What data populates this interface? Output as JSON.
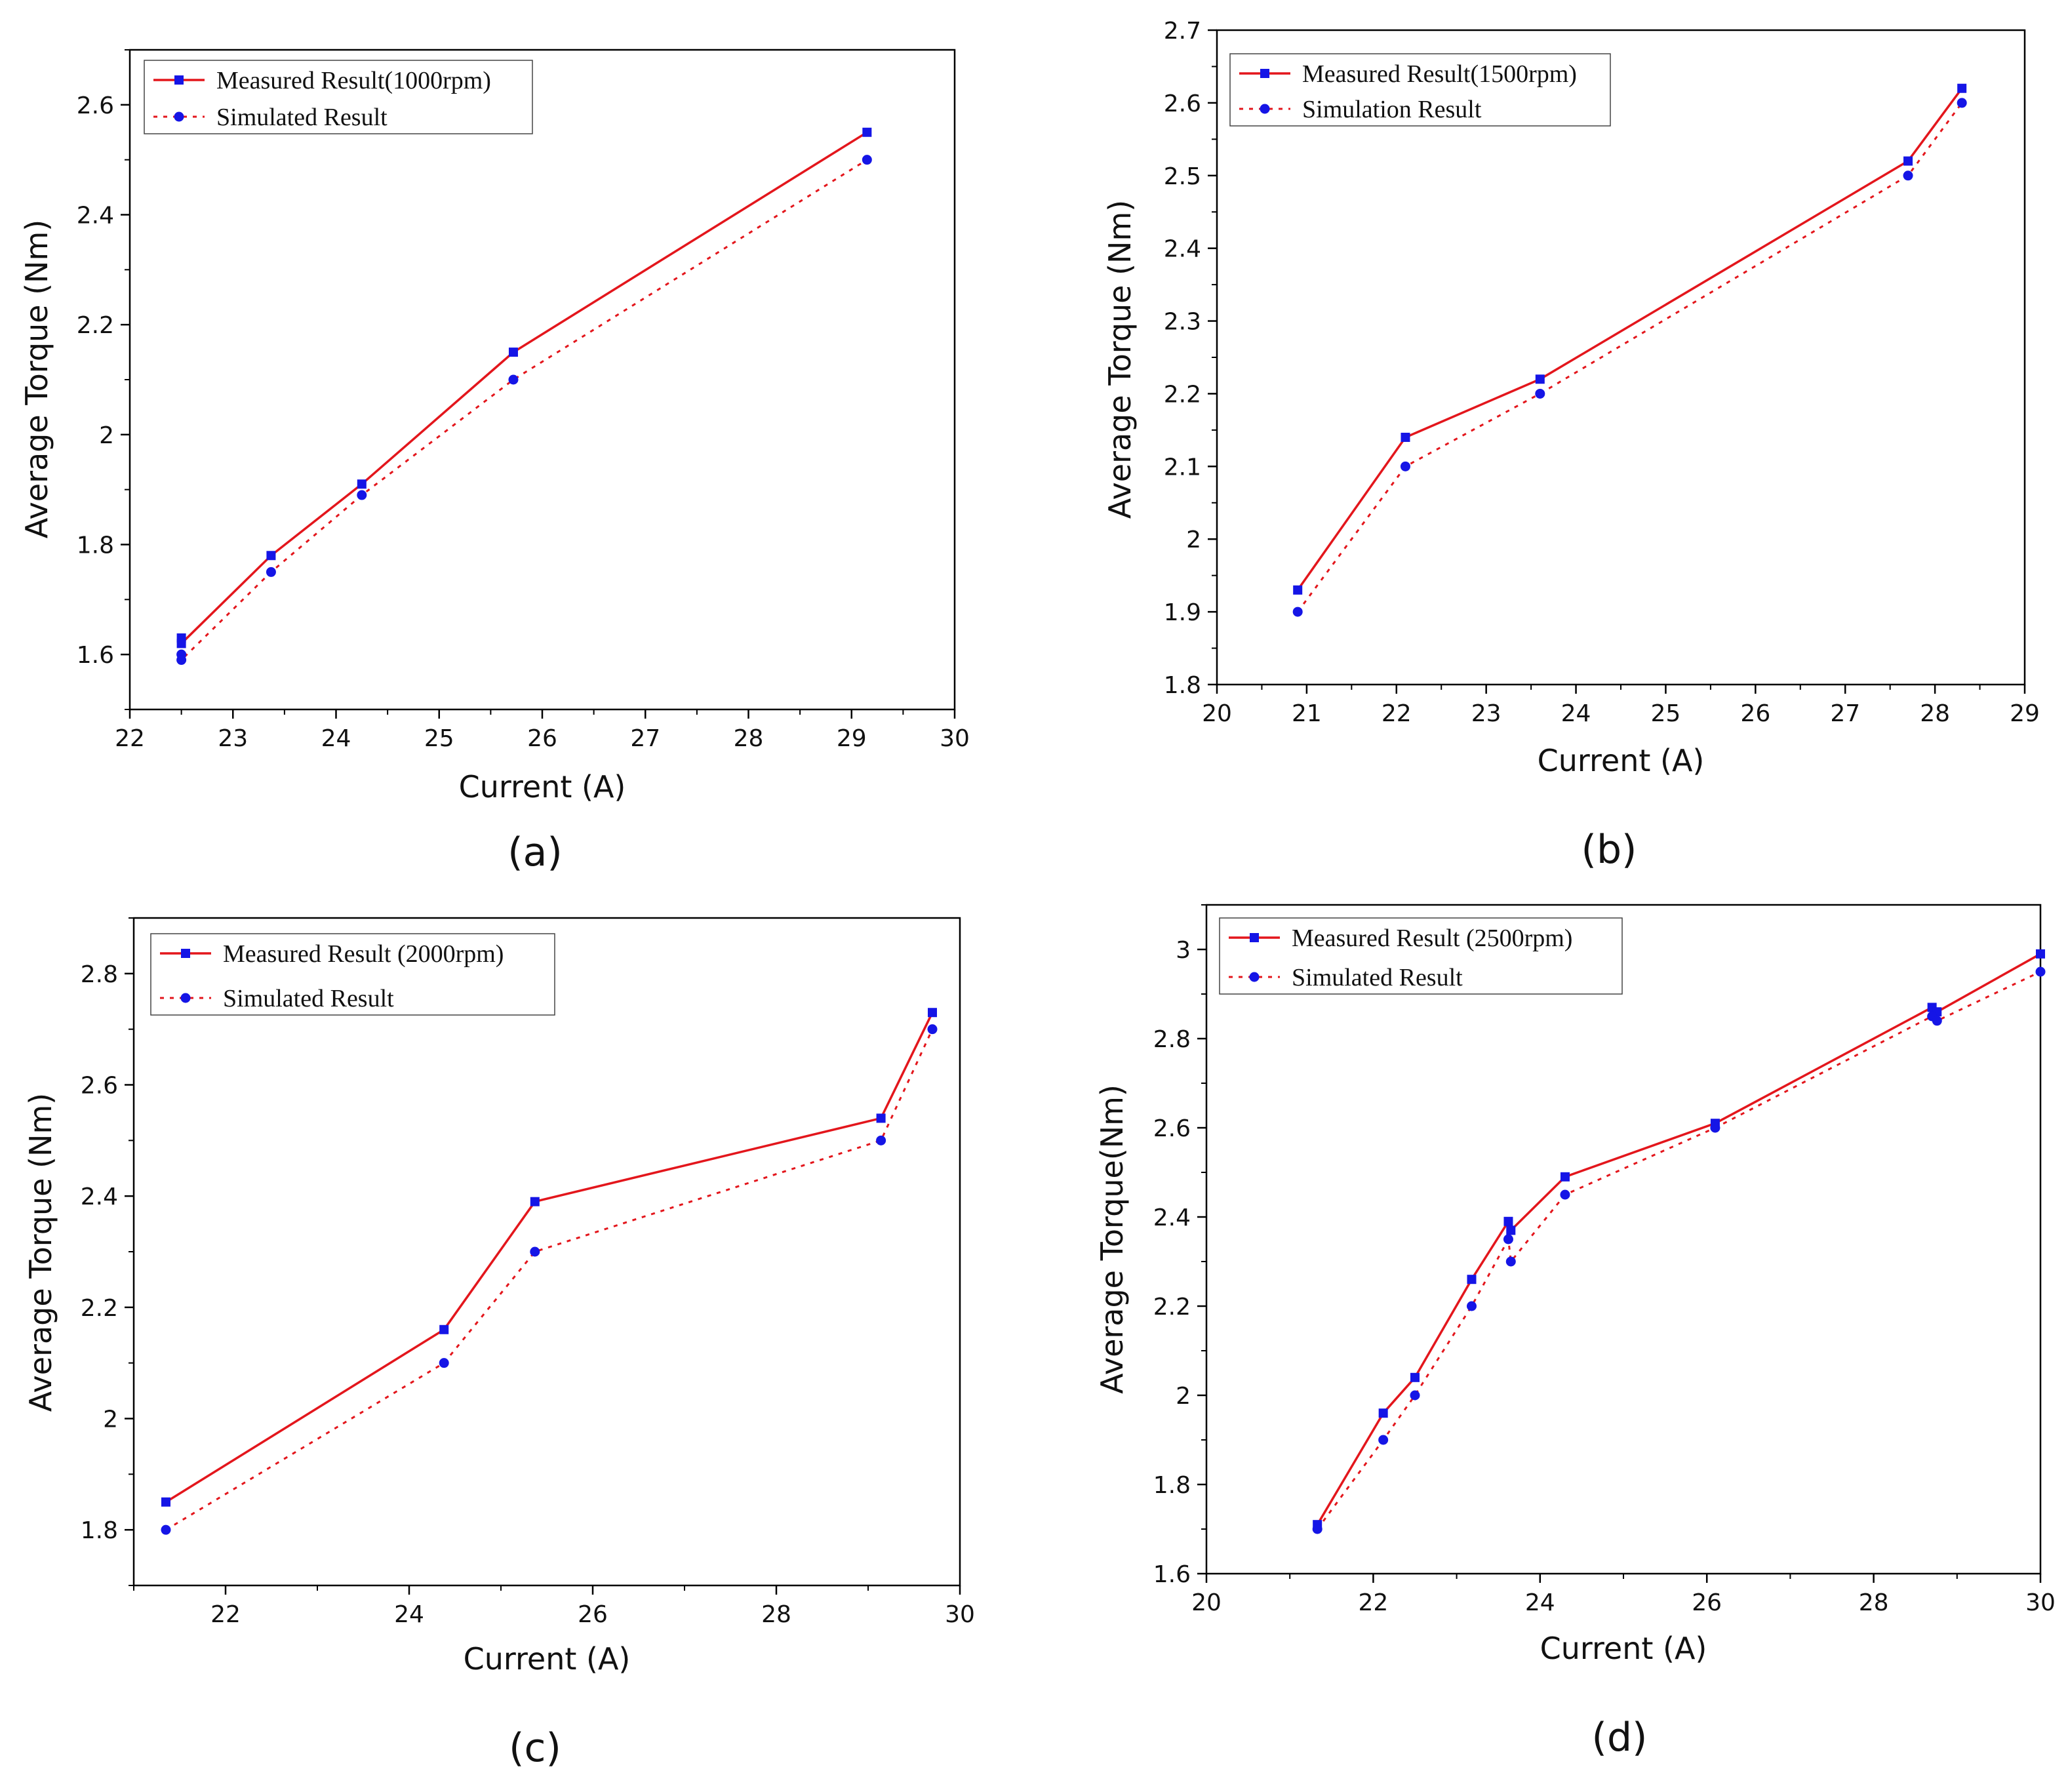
{
  "colors": {
    "measured_line": "#e3161c",
    "simulated_line": "#e3161c",
    "marker": "#1515e6",
    "axis": "#000000"
  },
  "chart_data": [
    {
      "type": "line",
      "caption": "(a)",
      "xlabel": "Current (A)",
      "ylabel": "Average Torque (Nm)",
      "xlim": [
        22,
        30
      ],
      "ylim": [
        1.5,
        2.7
      ],
      "xticks": [
        22,
        23,
        24,
        25,
        26,
        27,
        28,
        29,
        30
      ],
      "xtick_labels": [
        "22",
        "23",
        "24",
        "25",
        "26",
        "27",
        "28",
        "29",
        "30"
      ],
      "yticks": [
        1.6,
        1.8,
        2.0,
        2.2,
        2.4,
        2.6
      ],
      "ytick_labels": [
        "1.6",
        "1.8",
        "2",
        "2.2",
        "2.4",
        "2.6"
      ],
      "legend_position": "top-left",
      "series": [
        {
          "name": "Measured Result(1000rpm)",
          "style": "solid-square",
          "x": [
            22.5,
            22.5,
            23.37,
            24.25,
            25.72,
            29.15
          ],
          "y": [
            1.63,
            1.62,
            1.78,
            1.91,
            2.15,
            2.55
          ]
        },
        {
          "name": "Simulated Result",
          "style": "dotted-circle",
          "x": [
            22.5,
            22.5,
            23.37,
            24.25,
            25.72,
            29.15
          ],
          "y": [
            1.6,
            1.59,
            1.75,
            1.89,
            2.1,
            2.5
          ]
        }
      ]
    },
    {
      "type": "line",
      "caption": "(b)",
      "xlabel": "Current (A)",
      "ylabel": "Average Torque (Nm)",
      "xlim": [
        20,
        29
      ],
      "ylim": [
        1.8,
        2.7
      ],
      "xticks": [
        20,
        21,
        22,
        23,
        24,
        25,
        26,
        27,
        28,
        29
      ],
      "xtick_labels": [
        "20",
        "21",
        "22",
        "23",
        "24",
        "25",
        "26",
        "27",
        "28",
        "29"
      ],
      "yticks": [
        1.8,
        1.9,
        2.0,
        2.1,
        2.2,
        2.3,
        2.4,
        2.5,
        2.6,
        2.7
      ],
      "ytick_labels": [
        "1.8",
        "1.9",
        "2",
        "2.1",
        "2.2",
        "2.3",
        "2.4",
        "2.5",
        "2.6",
        "2.7"
      ],
      "legend_position": "top-left",
      "series": [
        {
          "name": "Measured Result(1500rpm)",
          "style": "solid-square",
          "x": [
            20.9,
            22.1,
            23.6,
            27.7,
            28.3
          ],
          "y": [
            1.93,
            2.14,
            2.22,
            2.52,
            2.62
          ]
        },
        {
          "name": "Simulation Result",
          "style": "dotted-circle",
          "x": [
            20.9,
            22.1,
            23.6,
            27.7,
            28.3
          ],
          "y": [
            1.9,
            2.1,
            2.2,
            2.5,
            2.6
          ]
        }
      ]
    },
    {
      "type": "line",
      "caption": "(c)",
      "xlabel": "Current (A)",
      "ylabel": "Average Torque (Nm)",
      "xlim": [
        21,
        30
      ],
      "ylim": [
        1.7,
        2.9
      ],
      "xticks": [
        22,
        24,
        26,
        28,
        30
      ],
      "xtick_labels": [
        "22",
        "24",
        "26",
        "28",
        "30"
      ],
      "yticks": [
        1.8,
        2.0,
        2.2,
        2.4,
        2.6,
        2.8
      ],
      "ytick_labels": [
        "1.8",
        "2",
        "2.2",
        "2.4",
        "2.6",
        "2.8"
      ],
      "legend_position": "top-left",
      "series": [
        {
          "name": "Measured Result (2000rpm)",
          "style": "solid-square",
          "x": [
            21.35,
            24.38,
            25.37,
            29.14,
            29.7
          ],
          "y": [
            1.85,
            2.16,
            2.39,
            2.54,
            2.73
          ]
        },
        {
          "name": "Simulated Result",
          "style": "dotted-circle",
          "x": [
            21.35,
            24.38,
            25.37,
            29.14,
            29.7
          ],
          "y": [
            1.8,
            2.1,
            2.3,
            2.5,
            2.7
          ]
        }
      ]
    },
    {
      "type": "line",
      "caption": "(d)",
      "xlabel": "Current (A)",
      "ylabel": "Average Torque(Nm)",
      "xlim": [
        20,
        30
      ],
      "ylim": [
        1.6,
        3.1
      ],
      "xticks": [
        20,
        22,
        24,
        26,
        28,
        30
      ],
      "xtick_labels": [
        "20",
        "22",
        "24",
        "26",
        "28",
        "30"
      ],
      "yticks": [
        1.6,
        1.8,
        2.0,
        2.2,
        2.4,
        2.6,
        2.8,
        3.0
      ],
      "ytick_labels": [
        "1.6",
        "1.8",
        "2",
        "2.2",
        "2.4",
        "2.6",
        "2.8",
        "3"
      ],
      "legend_position": "top-left",
      "series": [
        {
          "name": "Measured Result (2500rpm)",
          "style": "solid-square",
          "x": [
            21.33,
            22.12,
            22.5,
            23.18,
            23.62,
            23.65,
            24.3,
            26.1,
            28.7,
            28.76,
            30.0
          ],
          "y": [
            1.71,
            1.96,
            2.04,
            2.26,
            2.39,
            2.37,
            2.49,
            2.61,
            2.87,
            2.86,
            2.99
          ]
        },
        {
          "name": "Simulated Result",
          "style": "dotted-circle",
          "x": [
            21.33,
            22.12,
            22.5,
            23.18,
            23.62,
            23.65,
            24.3,
            26.1,
            28.7,
            28.76,
            30.0
          ],
          "y": [
            1.7,
            1.9,
            2.0,
            2.2,
            2.35,
            2.3,
            2.45,
            2.6,
            2.85,
            2.84,
            2.95
          ]
        }
      ]
    }
  ]
}
